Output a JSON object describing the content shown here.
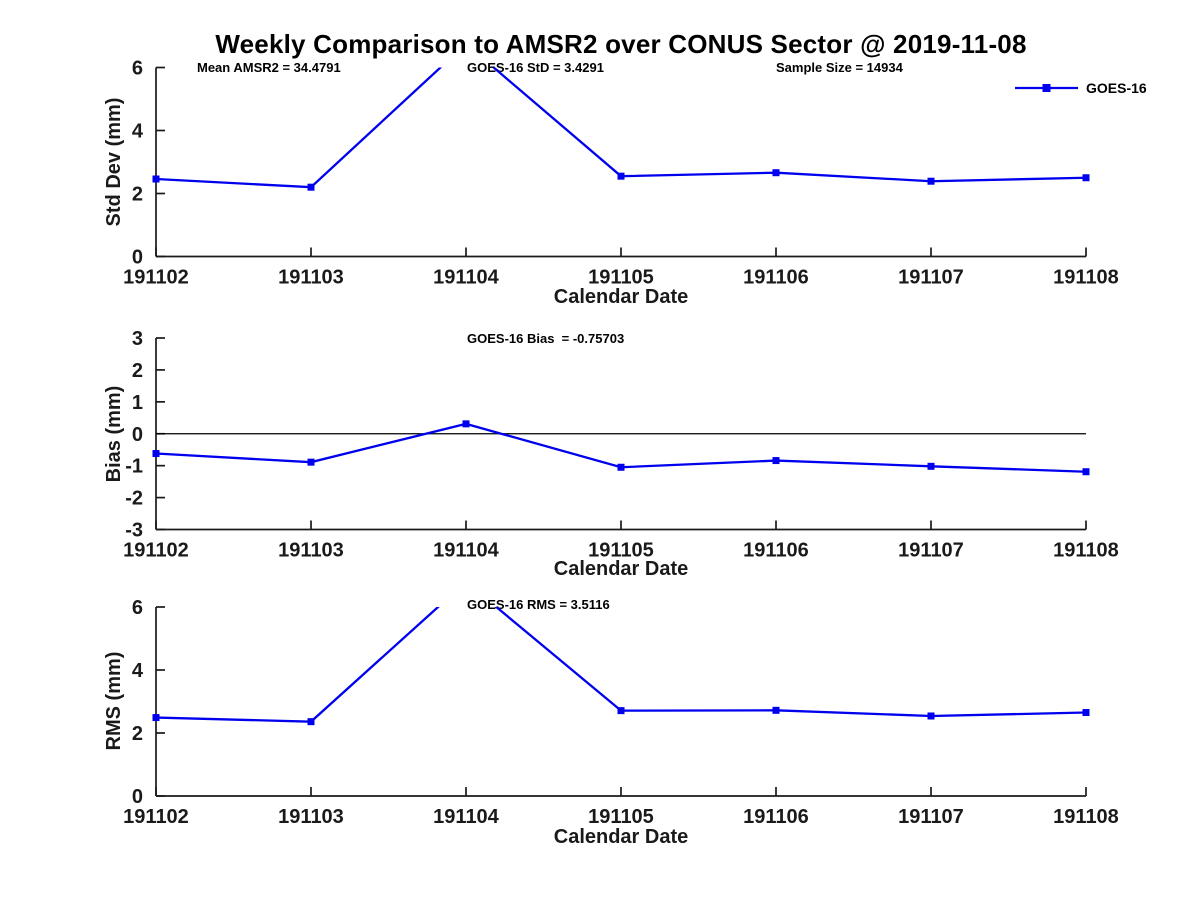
{
  "title": "Weekly Comparison to AMSR2 over CONUS Sector @ 2019-11-08",
  "legend": {
    "label": "GOES-16",
    "position": "top-right-inside"
  },
  "colors": {
    "series_line": "#0000EE",
    "axis": "#1a1a1a",
    "text": "#000000",
    "zero_line": "#000000",
    "background": "#FFFFFF"
  },
  "chart_data": [
    {
      "type": "line",
      "id": "std-dev",
      "categories": [
        "191102",
        "191103",
        "191104",
        "191105",
        "191106",
        "191107",
        "191108"
      ],
      "xlabel": "Calendar Date",
      "ylabel": "Std Dev (mm)",
      "ylim": [
        0,
        6
      ],
      "yticks": [
        0,
        2,
        4,
        6
      ],
      "series": [
        {
          "name": "GOES-16",
          "marker": "square",
          "values": [
            2.46,
            2.2,
            6.75,
            2.55,
            2.66,
            2.39,
            2.5
          ]
        }
      ],
      "annotations": [
        {
          "text": "Mean AMSR2 = 34.4791"
        },
        {
          "text": "GOES-16 StD = 3.4291"
        },
        {
          "text": "Sample Size = 14934"
        }
      ],
      "note": "peak at 191104 exceeds y-axis maximum and is clipped at 6"
    },
    {
      "type": "line",
      "id": "bias",
      "categories": [
        "191102",
        "191103",
        "191104",
        "191105",
        "191106",
        "191107",
        "191108"
      ],
      "xlabel": "Calendar Date",
      "ylabel": "Bias (mm)",
      "ylim": [
        -3,
        3
      ],
      "yticks": [
        3,
        2,
        1,
        0,
        -1,
        -2,
        -3
      ],
      "zero_line": true,
      "series": [
        {
          "name": "GOES-16",
          "marker": "square",
          "values": [
            -0.62,
            -0.89,
            0.31,
            -1.05,
            -0.84,
            -1.02,
            -1.19
          ]
        }
      ],
      "annotations": [
        {
          "text": "GOES-16 Bias  = -0.75703"
        }
      ]
    },
    {
      "type": "line",
      "id": "rms",
      "categories": [
        "191102",
        "191103",
        "191104",
        "191105",
        "191106",
        "191107",
        "191108"
      ],
      "xlabel": "Calendar Date",
      "ylabel": "RMS (mm)",
      "ylim": [
        0,
        6
      ],
      "yticks": [
        0,
        2,
        4,
        6
      ],
      "series": [
        {
          "name": "GOES-16",
          "marker": "square",
          "values": [
            2.49,
            2.36,
            6.8,
            2.71,
            2.72,
            2.54,
            2.65
          ]
        }
      ],
      "annotations": [
        {
          "text": "GOES-16 RMS = 3.5116"
        }
      ],
      "note": "peak at 191104 exceeds y-axis maximum and is clipped at 6"
    }
  ]
}
